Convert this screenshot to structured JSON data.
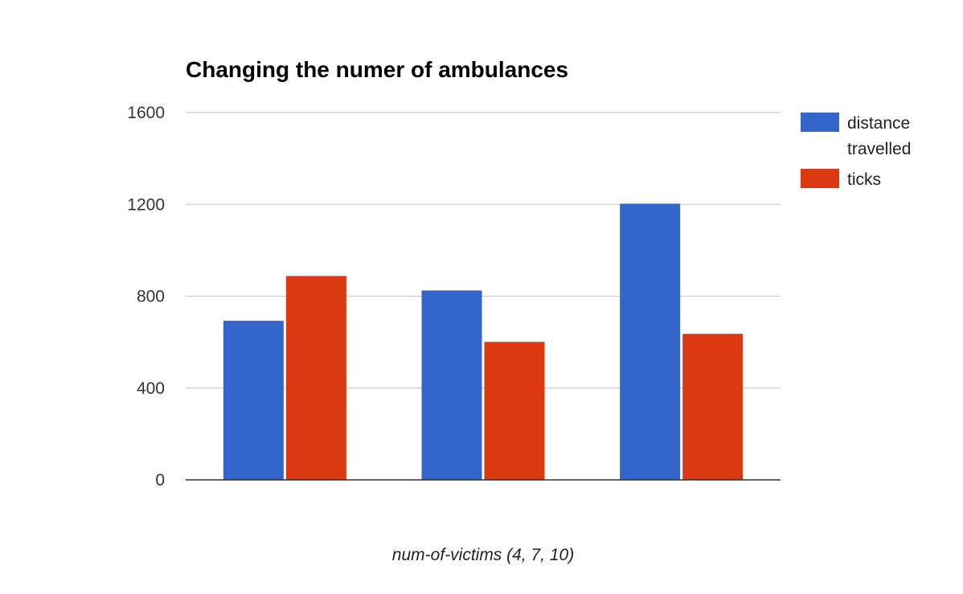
{
  "chart_data": {
    "type": "bar",
    "title": "Changing the numer of ambulances",
    "xlabel": "num-of-victims (4, 7, 10)",
    "ylabel": "",
    "categories": [
      "",
      "",
      ""
    ],
    "series": [
      {
        "name": "distance travelled",
        "legend_lines": [
          "distance",
          "travelled"
        ],
        "color": "#3366cc",
        "values": [
          693,
          825,
          1203
        ]
      },
      {
        "name": "ticks",
        "legend_lines": [
          "ticks"
        ],
        "color": "#dc3912",
        "values": [
          888,
          601,
          636
        ]
      }
    ],
    "ylim": [
      0,
      1600
    ],
    "yticks": [
      0,
      400,
      800,
      1200,
      1600
    ],
    "grid": true,
    "legend": "right"
  }
}
